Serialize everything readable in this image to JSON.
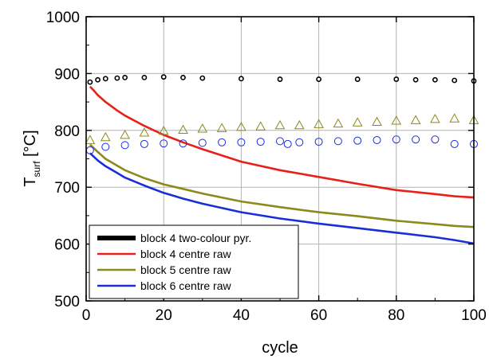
{
  "chart_data": {
    "type": "line",
    "xlabel": "cycle",
    "ylabel": {
      "main": "T",
      "sub": "surf",
      "unit": " [°C]"
    },
    "xlim": [
      0,
      100
    ],
    "ylim": [
      500,
      1000
    ],
    "xticks": [
      0,
      20,
      40,
      60,
      80,
      100
    ],
    "yticks": [
      500,
      600,
      700,
      800,
      900,
      1000
    ],
    "grid": true,
    "legend_position": "bottom-left",
    "series": [
      {
        "name": "block 4 two-colour pyr.",
        "color": "#000000",
        "style": "markers",
        "x": [
          1,
          3,
          5,
          8,
          10,
          15,
          20,
          25,
          30,
          40,
          50,
          60,
          70,
          80,
          85,
          90,
          95,
          100
        ],
        "y": [
          885,
          889,
          891,
          892,
          893,
          893,
          894,
          893,
          892,
          891,
          890,
          890,
          890,
          890,
          889,
          889,
          888,
          887
        ]
      },
      {
        "name": "block 4 centre raw",
        "color": "#e8201a",
        "style": "line",
        "x": [
          1,
          2,
          3,
          5,
          8,
          10,
          15,
          20,
          25,
          30,
          40,
          50,
          60,
          70,
          80,
          90,
          95,
          100
        ],
        "y": [
          877,
          870,
          862,
          850,
          835,
          826,
          808,
          792,
          779,
          767,
          745,
          730,
          718,
          706,
          695,
          688,
          684,
          682
        ]
      },
      {
        "name": "block 5 centre raw",
        "color": "#8c8a1a",
        "style": "line",
        "x": [
          1,
          3,
          5,
          8,
          10,
          15,
          20,
          25,
          30,
          40,
          50,
          60,
          70,
          80,
          90,
          95,
          100
        ],
        "y": [
          775,
          762,
          750,
          738,
          730,
          716,
          705,
          697,
          689,
          675,
          665,
          656,
          649,
          641,
          635,
          632,
          630
        ]
      },
      {
        "name": "block 6 centre raw",
        "color": "#1a2ed8",
        "style": "line",
        "x": [
          1,
          3,
          5,
          8,
          10,
          15,
          20,
          25,
          30,
          40,
          50,
          60,
          70,
          80,
          90,
          95,
          100
        ],
        "y": [
          760,
          747,
          737,
          725,
          717,
          703,
          690,
          680,
          671,
          656,
          645,
          636,
          628,
          620,
          612,
          607,
          601
        ]
      },
      {
        "color": "#8c8a1a",
        "style": "hollow-triangles",
        "x": [
          1,
          5,
          10,
          15,
          20,
          25,
          30,
          35,
          40,
          45,
          50,
          55,
          60,
          65,
          70,
          75,
          80,
          85,
          90,
          95,
          100
        ],
        "y": [
          783,
          788,
          792,
          796,
          799,
          801,
          803,
          804,
          806,
          807,
          809,
          809,
          811,
          812,
          814,
          815,
          817,
          818,
          820,
          821,
          818
        ]
      },
      {
        "color": "#1a2ed8",
        "style": "hollow-circles",
        "x": [
          1,
          5,
          10,
          15,
          20,
          25,
          30,
          35,
          40,
          45,
          50,
          52,
          55,
          60,
          65,
          70,
          75,
          80,
          85,
          90,
          95,
          100
        ],
        "y": [
          765,
          771,
          774,
          776,
          777,
          777,
          778,
          779,
          779,
          780,
          781,
          776,
          779,
          780,
          781,
          782,
          783,
          784,
          784,
          784,
          776,
          776
        ]
      }
    ]
  }
}
